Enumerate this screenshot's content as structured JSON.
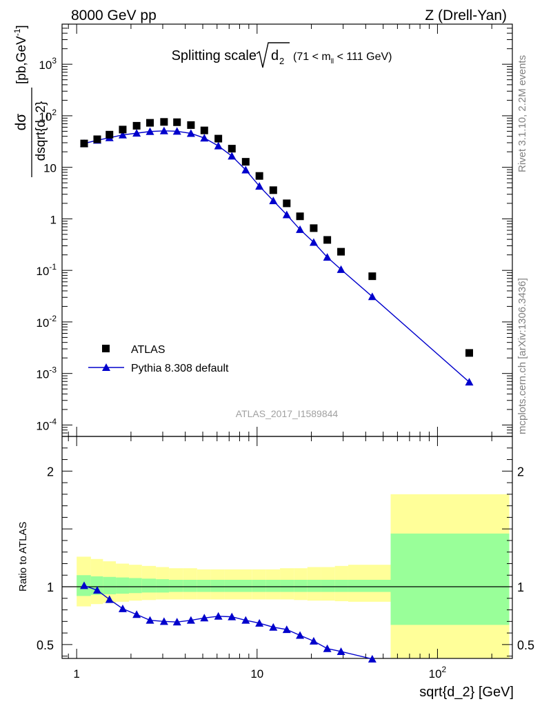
{
  "header": {
    "left": "8000 GeV pp",
    "right": "Z (Drell-Yan)"
  },
  "side_labels": {
    "rivet": "Rivet 3.1.10,  2.2M events",
    "mcplots": "mcplots.cern.ch [arXiv:1306.3436]"
  },
  "watermark": "ATLAS_2017_I1589844",
  "chart_data": [
    {
      "type": "scatter",
      "panel": "main",
      "title": "Splitting scale √d₂ (71 < m_ll < 111 GeV)",
      "title_main": "Splitting scale",
      "title_sqrt_var": "d",
      "title_sqrt_sub": "2",
      "title_range_pre": "(71 < m",
      "title_range_sub": "ll",
      "title_range_post": " < 111 GeV)",
      "xlabel": "sqrt{d_2} [GeV]",
      "ylabel": "dσ/dsqrt{d_2} [pb,GeV^-1]",
      "ylabel_num": "dσ",
      "ylabel_den": "dsqrt{d_2}",
      "ylabel_units": "[pb,GeV",
      "ylabel_units_sup": "-1",
      "ylabel_units_close": "]",
      "x_scale": "log",
      "y_scale": "log",
      "xlim": [
        0.83,
        260
      ],
      "ylim": [
        6e-05,
        6000
      ],
      "x_ticks": [
        {
          "value": 1,
          "label": "1"
        },
        {
          "value": 10,
          "label": "10"
        },
        {
          "value": 100,
          "label": "10",
          "sup": "2"
        }
      ],
      "y_ticks": [
        {
          "value": 0.0001,
          "base": "10",
          "sup": "-4"
        },
        {
          "value": 0.001,
          "base": "10",
          "sup": "-3"
        },
        {
          "value": 0.01,
          "base": "10",
          "sup": "-2"
        },
        {
          "value": 0.1,
          "base": "10",
          "sup": "-1"
        },
        {
          "value": 1,
          "base": "1",
          "sup": ""
        },
        {
          "value": 10,
          "base": "10",
          "sup": ""
        },
        {
          "value": 100,
          "base": "10",
          "sup": "2"
        },
        {
          "value": 1000,
          "base": "10",
          "sup": "3"
        }
      ],
      "legend_position": "bottom-left",
      "series": [
        {
          "name": "ATLAS",
          "marker": "square",
          "color": "#000000",
          "x": [
            1.1,
            1.3,
            1.52,
            1.8,
            2.15,
            2.55,
            3.05,
            3.6,
            4.3,
            5.1,
            6.1,
            7.25,
            8.65,
            10.3,
            12.3,
            14.6,
            17.3,
            20.6,
            24.5,
            29.2,
            43.5,
            150
          ],
          "y": [
            29,
            35,
            43,
            54,
            64,
            73,
            76,
            75,
            66,
            52,
            36,
            23,
            12.8,
            6.8,
            3.6,
            2.0,
            1.12,
            0.66,
            0.39,
            0.23,
            0.077,
            0.0025
          ]
        },
        {
          "name": "Pythia 8.308 default",
          "marker": "triangle",
          "color": "#0000cc",
          "x": [
            1.1,
            1.3,
            1.52,
            1.8,
            2.15,
            2.55,
            3.05,
            3.6,
            4.3,
            5.1,
            6.1,
            7.25,
            8.65,
            10.3,
            12.3,
            14.6,
            17.3,
            20.6,
            24.5,
            29.2,
            43.5,
            150
          ],
          "y": [
            29,
            33.5,
            37.5,
            42.5,
            46,
            49.5,
            51,
            50,
            45.5,
            37,
            26,
            16.5,
            8.9,
            4.3,
            2.25,
            1.2,
            0.62,
            0.35,
            0.18,
            0.104,
            0.031,
            0.00068
          ]
        }
      ]
    },
    {
      "type": "line",
      "panel": "ratio",
      "ylabel": "Ratio to ATLAS",
      "x_scale": "log",
      "xlim": [
        0.83,
        260
      ],
      "ylim": [
        0.38,
        2.3
      ],
      "y_ticks": [
        {
          "value": 0.5,
          "label": "0.5"
        },
        {
          "value": 1,
          "label": "1"
        },
        {
          "value": 2,
          "label": "2"
        }
      ],
      "reference_line": 1,
      "bands": {
        "edges": [
          1.0,
          1.2,
          1.4,
          1.65,
          1.95,
          2.3,
          2.75,
          3.25,
          3.9,
          4.65,
          5.55,
          6.6,
          7.9,
          9.4,
          11.2,
          13.4,
          16.0,
          19.0,
          22.6,
          27.0,
          32.0,
          55.0,
          250.0
        ],
        "stat_color": "#99ff99",
        "syst_color": "#ffff99",
        "inner_low": [
          0.92,
          0.93,
          0.935,
          0.94,
          0.945,
          0.95,
          0.95,
          0.955,
          0.955,
          0.955,
          0.955,
          0.955,
          0.955,
          0.955,
          0.955,
          0.955,
          0.955,
          0.955,
          0.955,
          0.955,
          0.955,
          0.67
        ],
        "inner_high": [
          1.1,
          1.09,
          1.085,
          1.08,
          1.075,
          1.07,
          1.065,
          1.06,
          1.06,
          1.06,
          1.06,
          1.06,
          1.06,
          1.06,
          1.06,
          1.06,
          1.06,
          1.06,
          1.06,
          1.06,
          1.06,
          1.46
        ],
        "outer_low": [
          0.83,
          0.85,
          0.86,
          0.87,
          0.88,
          0.885,
          0.89,
          0.89,
          0.89,
          0.89,
          0.89,
          0.89,
          0.89,
          0.89,
          0.89,
          0.89,
          0.885,
          0.88,
          0.88,
          0.875,
          0.87,
          0.38
        ],
        "outer_high": [
          1.26,
          1.24,
          1.22,
          1.2,
          1.19,
          1.18,
          1.17,
          1.16,
          1.16,
          1.15,
          1.15,
          1.15,
          1.15,
          1.15,
          1.15,
          1.16,
          1.16,
          1.17,
          1.17,
          1.18,
          1.19,
          1.8
        ]
      },
      "series": [
        {
          "name": "Pythia 8.308 default",
          "marker": "triangle",
          "color": "#0000cc",
          "x": [
            1.1,
            1.3,
            1.52,
            1.8,
            2.15,
            2.55,
            3.05,
            3.6,
            4.3,
            5.1,
            6.1,
            7.25,
            8.65,
            10.3,
            12.3,
            14.6,
            17.3,
            20.6,
            24.5,
            29.2,
            43.5
          ],
          "y": [
            1.01,
            0.97,
            0.89,
            0.81,
            0.76,
            0.71,
            0.7,
            0.695,
            0.71,
            0.73,
            0.745,
            0.74,
            0.71,
            0.685,
            0.65,
            0.63,
            0.58,
            0.53,
            0.465,
            0.44,
            0.375
          ],
          "err": [
            0,
            0,
            0,
            0,
            0,
            0,
            0,
            0,
            0,
            0,
            0,
            0,
            0,
            0,
            0,
            0,
            0,
            0.012,
            0.018,
            0.02,
            0.015
          ]
        }
      ]
    }
  ]
}
